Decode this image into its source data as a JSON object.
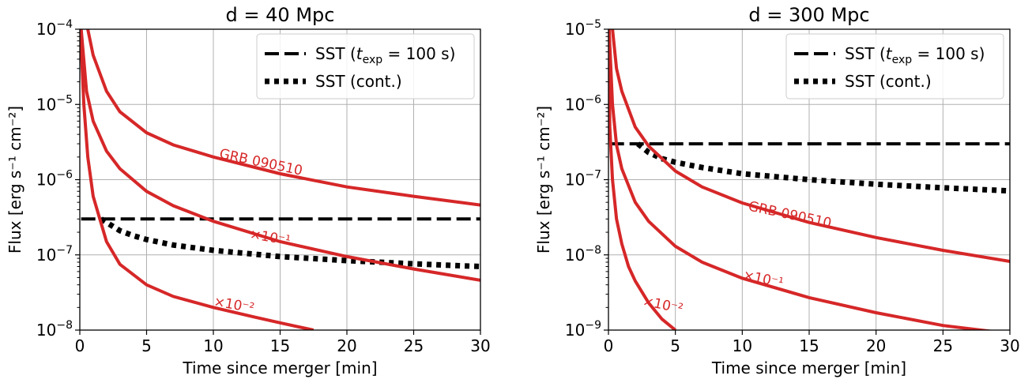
{
  "chart_data": [
    {
      "type": "line",
      "title": "d = 40 Mpc",
      "xlabel": "Time since merger [min]",
      "ylabel": "Flux [erg s⁻¹ cm⁻²]",
      "xlim": [
        0,
        30
      ],
      "ylim": [
        1e-08,
        0.0001
      ],
      "yscale": "log",
      "xticks": [
        0,
        5,
        10,
        15,
        20,
        25,
        30
      ],
      "yticks": [
        {
          "base": "10",
          "exp": "−8"
        },
        {
          "base": "10",
          "exp": "−7"
        },
        {
          "base": "10",
          "exp": "−6"
        },
        {
          "base": "10",
          "exp": "−5"
        },
        {
          "base": "10",
          "exp": "−4"
        }
      ],
      "grid": true,
      "legend": "top-right",
      "series": [
        {
          "name": "SST (t_exp = 100 s)",
          "style": "dashed",
          "color": "#000000",
          "x": [
            0.1,
            30
          ],
          "y": [
            3e-07,
            3e-07
          ]
        },
        {
          "name": "SST (cont.)",
          "style": "dotted",
          "color": "#000000",
          "x": [
            1.6,
            2,
            3,
            4,
            5,
            7,
            10,
            15,
            20,
            25,
            30
          ],
          "y": [
            3e-07,
            2.7e-07,
            2.1e-07,
            1.8e-07,
            1.6e-07,
            1.35e-07,
            1.15e-07,
            9.5e-08,
            8.4e-08,
            7.6e-08,
            7e-08
          ]
        },
        {
          "label": "GRB 090510",
          "style": "solid",
          "color": "#d62728",
          "x": [
            0.6,
            1,
            2,
            3,
            5,
            7,
            10,
            15,
            20,
            25,
            30
          ],
          "y": [
            0.0001,
            4.5e-05,
            1.5e-05,
            8e-06,
            4.2e-06,
            2.9e-06,
            2e-06,
            1.2e-06,
            8e-07,
            6e-07,
            4.6e-07
          ]
        },
        {
          "label": "×10⁻¹",
          "style": "solid",
          "color": "#d62728",
          "x": [
            0.1,
            0.5,
            1,
            2,
            3,
            5,
            7,
            10,
            15,
            20,
            25,
            30
          ],
          "y": [
            0.0001,
            1.5e-05,
            6e-06,
            2.4e-06,
            1.4e-06,
            7e-07,
            4.5e-07,
            2.8e-07,
            1.5e-07,
            9.5e-08,
            6.5e-08,
            4.6e-08
          ]
        },
        {
          "label": "×10⁻²",
          "style": "solid",
          "color": "#d62728",
          "x": [
            0.05,
            0.3,
            0.6,
            1,
            2,
            3,
            5,
            7,
            10,
            13,
            15,
            17.5
          ],
          "y": [
            0.0001,
            1e-05,
            2e-06,
            6e-07,
            1.5e-07,
            7.5e-08,
            4e-08,
            2.8e-08,
            2e-08,
            1.5e-08,
            1.25e-08,
            1e-08
          ]
        }
      ],
      "annotations": [
        {
          "text": "GRB 090510",
          "x": 13.5,
          "y": 1.5e-06,
          "angle": 12
        },
        {
          "text": "×10⁻¹",
          "x": 14.2,
          "y": 1.5e-07,
          "angle": 10
        },
        {
          "text": "×10⁻²",
          "x": 11.5,
          "y": 1.9e-08,
          "angle": 10
        }
      ]
    },
    {
      "type": "line",
      "title": "d = 300 Mpc",
      "xlabel": "Time since merger [min]",
      "ylabel": "Flux [erg s⁻¹ cm⁻²]",
      "xlim": [
        0,
        30
      ],
      "ylim": [
        1e-09,
        1e-05
      ],
      "yscale": "log",
      "xticks": [
        0,
        5,
        10,
        15,
        20,
        25,
        30
      ],
      "yticks": [
        {
          "base": "10",
          "exp": "−9"
        },
        {
          "base": "10",
          "exp": "−8"
        },
        {
          "base": "10",
          "exp": "−7"
        },
        {
          "base": "10",
          "exp": "−6"
        },
        {
          "base": "10",
          "exp": "−5"
        }
      ],
      "grid": true,
      "legend": "top-right",
      "series": [
        {
          "name": "SST (t_exp = 100 s)",
          "style": "dashed",
          "color": "#000000",
          "x": [
            0.1,
            30
          ],
          "y": [
            3e-07,
            3e-07
          ]
        },
        {
          "name": "SST (cont.)",
          "style": "dotted",
          "color": "#000000",
          "x": [
            2.2,
            3,
            4,
            5,
            7,
            10,
            15,
            20,
            25,
            30
          ],
          "y": [
            3e-07,
            2.3e-07,
            1.9e-07,
            1.7e-07,
            1.45e-07,
            1.2e-07,
            1e-07,
            8.7e-08,
            7.8e-08,
            7.1e-08
          ]
        },
        {
          "label": "GRB 090510",
          "style": "solid",
          "color": "#d62728",
          "x": [
            0.3,
            0.6,
            1,
            2,
            3,
            5,
            7,
            10,
            15,
            20,
            25,
            30
          ],
          "y": [
            1e-05,
            3e-06,
            1.5e-06,
            5e-07,
            2.8e-07,
            1.3e-07,
            8e-08,
            4.9e-08,
            2.7e-08,
            1.7e-08,
            1.15e-08,
            8.2e-09
          ]
        },
        {
          "label": "×10⁻¹",
          "style": "solid",
          "color": "#d62728",
          "x": [
            0.05,
            0.3,
            0.6,
            1,
            2,
            3,
            5,
            7,
            10,
            15,
            20,
            25,
            30
          ],
          "y": [
            1e-05,
            1e-06,
            2.9e-07,
            1.4e-07,
            5e-08,
            2.8e-08,
            1.3e-08,
            8e-09,
            4.9e-09,
            2.7e-09,
            1.7e-09,
            1.15e-09,
            9e-10
          ]
        },
        {
          "label": "×10⁻²",
          "style": "solid",
          "color": "#d62728",
          "x": [
            0.02,
            0.1,
            0.3,
            0.6,
            1,
            1.5,
            2,
            3,
            4,
            5
          ],
          "y": [
            1e-05,
            5e-07,
            1e-07,
            3e-08,
            1.4e-08,
            7e-09,
            4.5e-09,
            2.3e-09,
            1.4e-09,
            1e-09
          ]
        }
      ],
      "annotations": [
        {
          "text": "GRB 090510",
          "x": 13.5,
          "y": 3e-08,
          "angle": 12
        },
        {
          "text": "×10⁻¹",
          "x": 11.5,
          "y": 4.2e-09,
          "angle": 12
        },
        {
          "text": "×10⁻²",
          "x": 4.0,
          "y": 1.9e-09,
          "angle": 12
        }
      ]
    }
  ],
  "legend_entries": [
    {
      "prefix": "SST (",
      "math_t": "t",
      "math_sub": "exp",
      "math_rest": " = 100 s",
      "suffix": ")"
    },
    {
      "text": "SST (cont.)"
    }
  ]
}
